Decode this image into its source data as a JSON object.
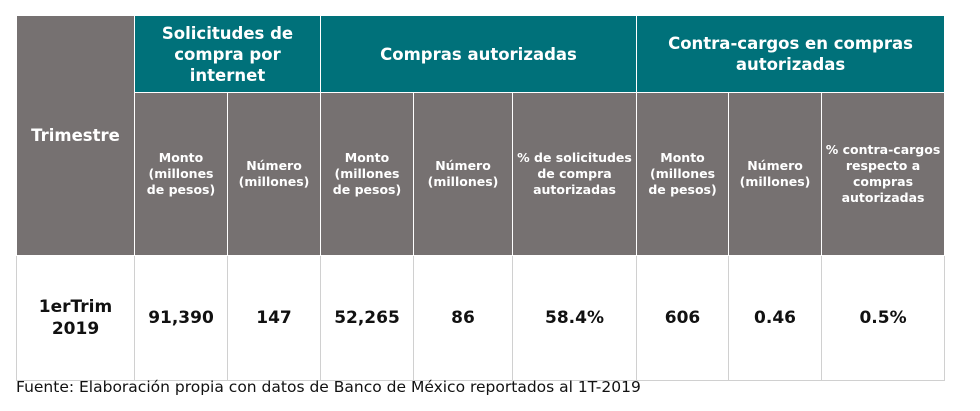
{
  "header": {
    "row_label": "Trimestre",
    "groups": [
      "Solicitudes de compra por internet",
      "Compras autorizadas",
      "Contra-cargos en compras autorizadas"
    ],
    "subheaders": [
      "Monto (millones de pesos)",
      "Número (millones)",
      "Monto (millones de pesos)",
      "Número (millones)",
      "% de solicitudes de compra autorizadas",
      "Monto (millones de pesos)",
      "Número (millones)",
      "% contra-cargos respecto a compras autorizadas"
    ]
  },
  "rows": [
    {
      "label": "1erTrim 2019",
      "values": [
        "91,390",
        "147",
        "52,265",
        "86",
        "58.4%",
        "606",
        "0.46",
        "0.5%"
      ]
    }
  ],
  "source": "Fuente: Elaboración propia con datos de Banco de México reportados al 1T-2019",
  "colors": {
    "teal": "#00717a",
    "gray": "#767171"
  }
}
